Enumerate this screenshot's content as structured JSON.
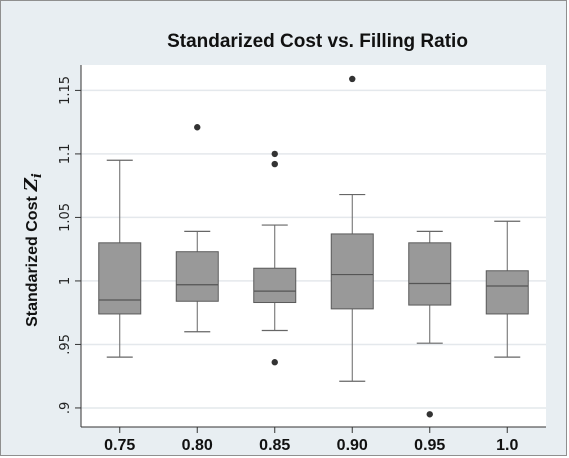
{
  "chart_data": {
    "type": "boxplot",
    "title": "Standarized Cost vs. Filling Ratio",
    "xlabel": "",
    "ylabel": "Standarized Cost",
    "ylabel_symbol": "Z",
    "ylabel_subscript": "i",
    "categories": [
      "0.75",
      "0.80",
      "0.85",
      "0.90",
      "0.95",
      "1.0"
    ],
    "yticks": [
      ".9",
      ".95",
      "1",
      "1.05",
      "1.1",
      "1.15"
    ],
    "ytick_values": [
      0.9,
      0.95,
      1.0,
      1.05,
      1.1,
      1.15
    ],
    "ylim": [
      0.885,
      1.17
    ],
    "grid": true,
    "box_color": "#999999",
    "plot_bg": "#ffffff",
    "outer_bg": "#e8eef2",
    "boxes": [
      {
        "whisker_low": 0.94,
        "q1": 0.974,
        "median": 0.985,
        "q3": 1.03,
        "whisker_high": 1.095,
        "outliers": []
      },
      {
        "whisker_low": 0.96,
        "q1": 0.984,
        "median": 0.997,
        "q3": 1.023,
        "whisker_high": 1.039,
        "outliers": [
          1.121
        ]
      },
      {
        "whisker_low": 0.961,
        "q1": 0.983,
        "median": 0.992,
        "q3": 1.01,
        "whisker_high": 1.044,
        "outliers": [
          1.1,
          1.092,
          0.936
        ]
      },
      {
        "whisker_low": 0.921,
        "q1": 0.978,
        "median": 1.005,
        "q3": 1.037,
        "whisker_high": 1.068,
        "outliers": [
          1.159
        ]
      },
      {
        "whisker_low": 0.951,
        "q1": 0.981,
        "median": 0.998,
        "q3": 1.03,
        "whisker_high": 1.039,
        "outliers": [
          0.895
        ]
      },
      {
        "whisker_low": 0.94,
        "q1": 0.974,
        "median": 0.996,
        "q3": 1.008,
        "whisker_high": 1.047,
        "outliers": []
      }
    ]
  }
}
